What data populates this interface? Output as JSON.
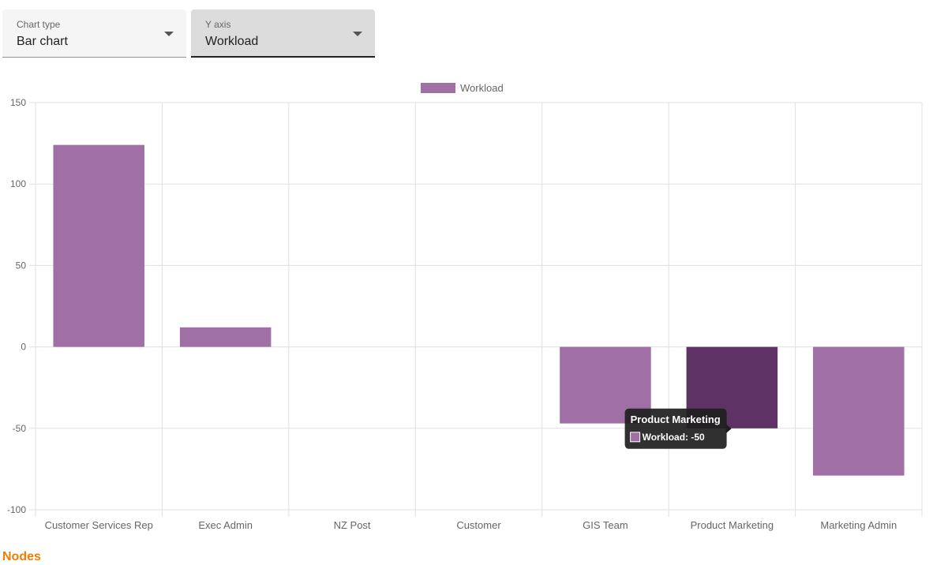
{
  "controls": {
    "chart_type": {
      "label": "Chart type",
      "value": "Bar chart"
    },
    "y_axis": {
      "label": "Y axis",
      "value": "Workload"
    }
  },
  "chart_data": {
    "type": "bar",
    "categories": [
      "Customer Services Rep",
      "Exec Admin",
      "NZ Post",
      "Customer",
      "GIS Team",
      "Product Marketing",
      "Marketing Admin"
    ],
    "series": [
      {
        "name": "Workload",
        "values": [
          124,
          12,
          0,
          0,
          -47,
          -50,
          -79
        ]
      }
    ],
    "ylim": [
      -100,
      150
    ],
    "yticks": [
      150,
      100,
      50,
      0,
      -50,
      -100
    ],
    "grid": true,
    "legend_position": "top",
    "colors": {
      "bar": "#a06fa6",
      "bar_highlight": "#5e3264",
      "grid": "#e0e0e0",
      "tick_text": "#666666",
      "tooltip_bg": "#1e1e1e"
    },
    "tooltip": {
      "title": "Product Marketing",
      "label": "Workload: -50",
      "category_index": 5
    }
  },
  "section": {
    "nodes_title": "Nodes"
  }
}
